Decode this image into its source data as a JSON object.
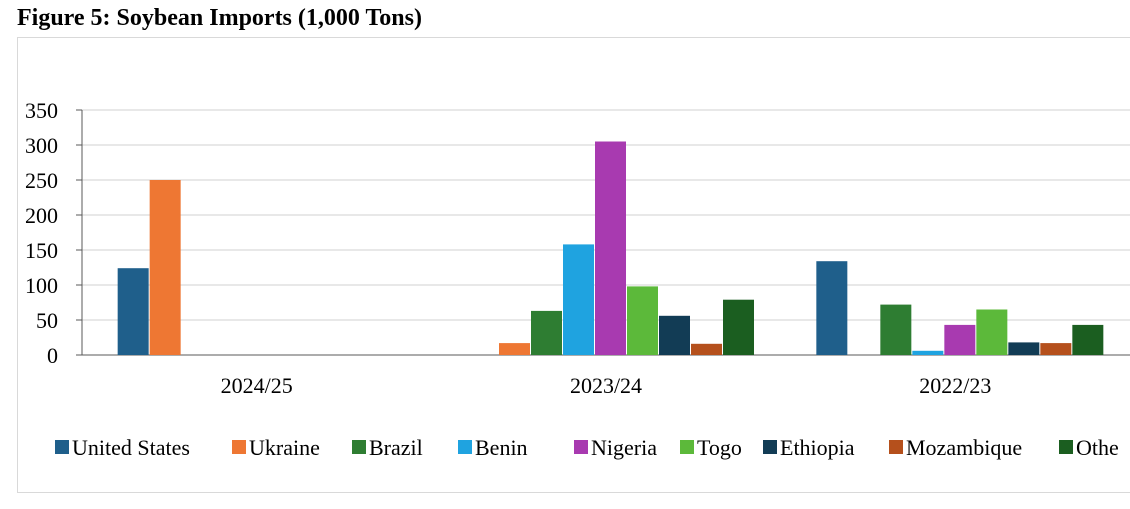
{
  "chart_data": {
    "type": "bar",
    "title": "Figure 5: Soybean Imports (1,000 Tons)",
    "categories": [
      "2024/25",
      "2023/24",
      "2022/23"
    ],
    "ylim": [
      0,
      350
    ],
    "yticks": [
      0,
      50,
      100,
      150,
      200,
      250,
      300,
      350
    ],
    "grid": true,
    "legend": "bottom",
    "series": [
      {
        "name": "United States",
        "color": "#1f5f8b",
        "values": [
          124,
          null,
          134
        ]
      },
      {
        "name": "Ukraine",
        "color": "#ee7733",
        "values": [
          250,
          17,
          null
        ]
      },
      {
        "name": "Brazil",
        "color": "#2e7d32",
        "values": [
          null,
          63,
          72
        ]
      },
      {
        "name": "Benin",
        "color": "#1fa3e0",
        "values": [
          null,
          158,
          6
        ]
      },
      {
        "name": "Nigeria",
        "color": "#a83ab0",
        "values": [
          null,
          305,
          43
        ]
      },
      {
        "name": "Togo",
        "color": "#5cb93a",
        "values": [
          null,
          98,
          65
        ]
      },
      {
        "name": "Ethiopia",
        "color": "#123c55",
        "values": [
          null,
          56,
          18
        ]
      },
      {
        "name": "Mozambique",
        "color": "#b5501c",
        "values": [
          null,
          16,
          17
        ]
      },
      {
        "name": "Othe",
        "color": "#1b5e20",
        "values": [
          null,
          79,
          43
        ]
      }
    ]
  }
}
